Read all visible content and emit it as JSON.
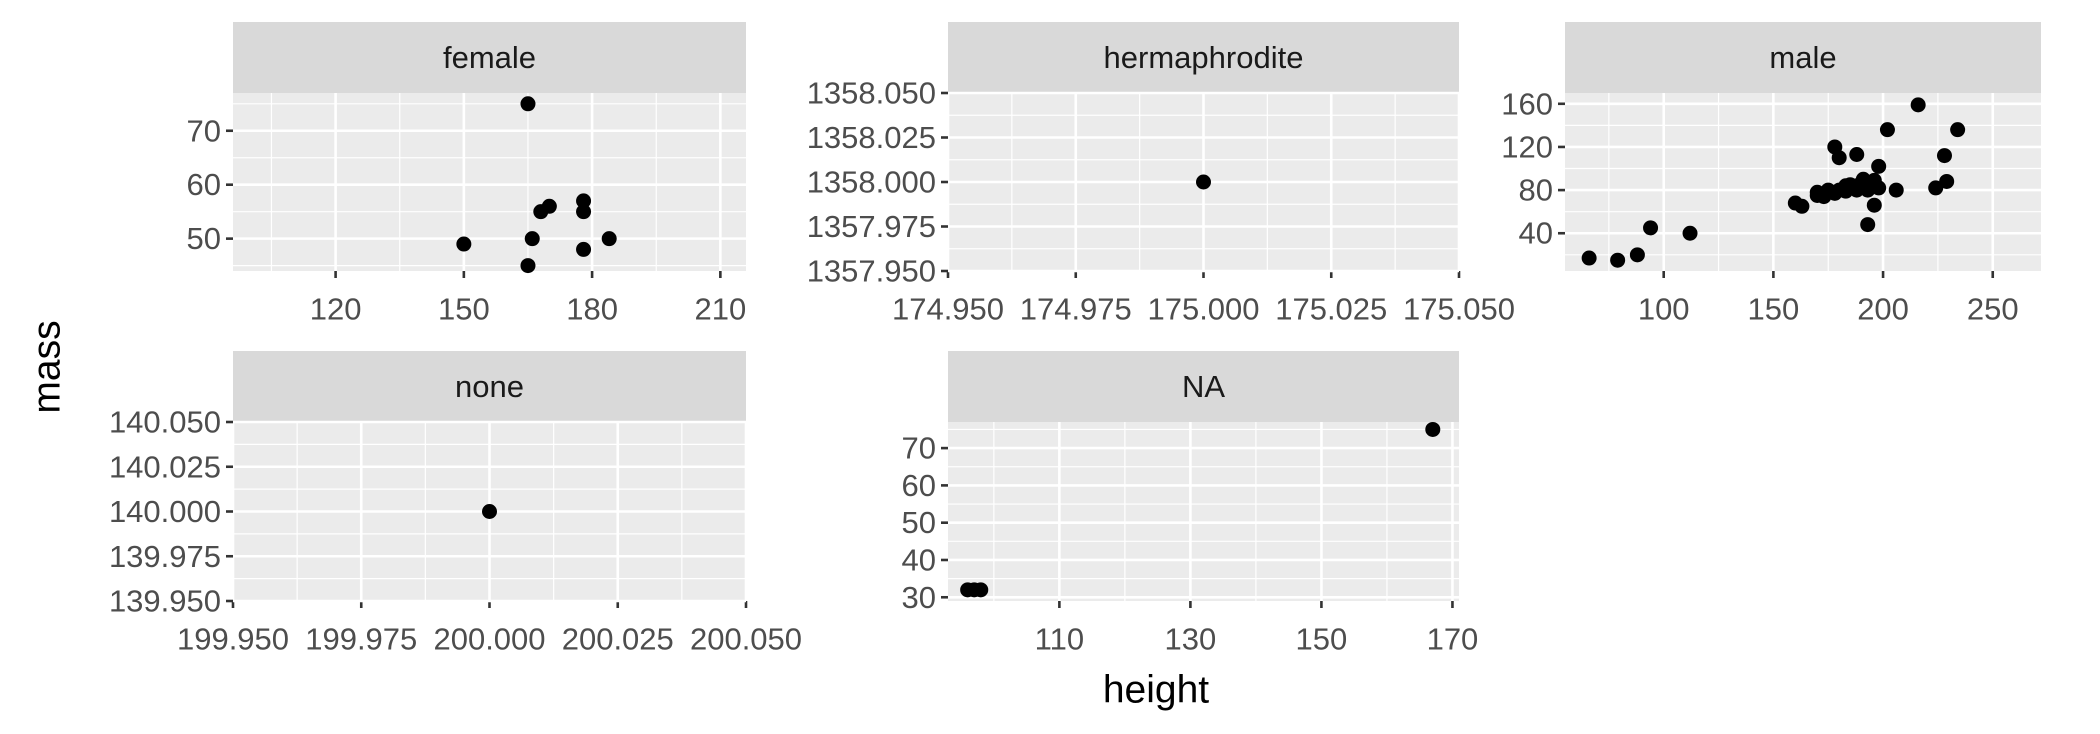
{
  "chart_data": {
    "type": "scatter",
    "xlabel": "height",
    "ylabel": "mass",
    "facet_scales": "free",
    "grid": true,
    "panels": [
      {
        "strip": "female",
        "xlim": [
          96,
          216
        ],
        "ylim": [
          44,
          77
        ],
        "xticks": [
          {
            "v": 120,
            "label": "120"
          },
          {
            "v": 150,
            "label": "150"
          },
          {
            "v": 180,
            "label": "180"
          },
          {
            "v": 210,
            "label": "210"
          }
        ],
        "yticks": [
          {
            "v": 50,
            "label": "50"
          },
          {
            "v": 60,
            "label": "60"
          },
          {
            "v": 70,
            "label": "70"
          }
        ],
        "points": [
          [
            165,
            75
          ],
          [
            150,
            49
          ],
          [
            165,
            45
          ],
          [
            166,
            50
          ],
          [
            168,
            55
          ],
          [
            170,
            56
          ],
          [
            178,
            57
          ],
          [
            178,
            55
          ],
          [
            178,
            48
          ],
          [
            184,
            50
          ]
        ]
      },
      {
        "strip": "hermaphrodite",
        "xlim": [
          174.95,
          175.05
        ],
        "ylim": [
          1357.95,
          1358.05
        ],
        "xticks": [
          {
            "v": 174.95,
            "label": "174.950"
          },
          {
            "v": 174.975,
            "label": "174.975"
          },
          {
            "v": 175.0,
            "label": "175.000"
          },
          {
            "v": 175.025,
            "label": "175.025"
          },
          {
            "v": 175.05,
            "label": "175.050"
          }
        ],
        "yticks": [
          {
            "v": 1357.95,
            "label": "1357.950"
          },
          {
            "v": 1357.975,
            "label": "1357.975"
          },
          {
            "v": 1358.0,
            "label": "1358.000"
          },
          {
            "v": 1358.025,
            "label": "1358.025"
          },
          {
            "v": 1358.05,
            "label": "1358.050"
          }
        ],
        "points": [
          [
            175,
            1358
          ]
        ]
      },
      {
        "strip": "male",
        "xlim": [
          55,
          272
        ],
        "ylim": [
          5,
          170
        ],
        "xticks": [
          {
            "v": 100,
            "label": "100"
          },
          {
            "v": 150,
            "label": "150"
          },
          {
            "v": 200,
            "label": "200"
          },
          {
            "v": 250,
            "label": "250"
          }
        ],
        "yticks": [
          {
            "v": 40,
            "label": "40"
          },
          {
            "v": 80,
            "label": "80"
          },
          {
            "v": 120,
            "label": "120"
          },
          {
            "v": 160,
            "label": "160"
          }
        ],
        "points": [
          [
            66,
            17
          ],
          [
            79,
            15
          ],
          [
            88,
            20
          ],
          [
            94,
            45
          ],
          [
            112,
            40
          ],
          [
            160,
            68
          ],
          [
            163,
            65
          ],
          [
            170,
            75
          ],
          [
            170,
            78
          ],
          [
            173,
            74
          ],
          [
            175,
            80
          ],
          [
            178,
            77
          ],
          [
            178,
            120
          ],
          [
            180,
            110
          ],
          [
            180,
            80
          ],
          [
            183,
            79
          ],
          [
            183,
            84
          ],
          [
            185,
            85
          ],
          [
            188,
            80
          ],
          [
            188,
            84
          ],
          [
            188,
            113
          ],
          [
            190,
            83
          ],
          [
            191,
            90
          ],
          [
            193,
            48
          ],
          [
            193,
            80
          ],
          [
            193,
            85
          ],
          [
            196,
            66
          ],
          [
            196,
            89
          ],
          [
            198,
            82
          ],
          [
            198,
            102
          ],
          [
            202,
            136
          ],
          [
            206,
            80
          ],
          [
            216,
            159
          ],
          [
            224,
            82
          ],
          [
            228,
            112
          ],
          [
            229,
            88
          ],
          [
            234,
            136
          ]
        ]
      },
      {
        "strip": "none",
        "xlim": [
          199.95,
          200.05
        ],
        "ylim": [
          139.95,
          140.05
        ],
        "xticks": [
          {
            "v": 199.95,
            "label": "199.950"
          },
          {
            "v": 199.975,
            "label": "199.975"
          },
          {
            "v": 200.0,
            "label": "200.000"
          },
          {
            "v": 200.025,
            "label": "200.025"
          },
          {
            "v": 200.05,
            "label": "200.050"
          }
        ],
        "yticks": [
          {
            "v": 139.95,
            "label": "139.950"
          },
          {
            "v": 139.975,
            "label": "139.975"
          },
          {
            "v": 140.0,
            "label": "140.000"
          },
          {
            "v": 140.025,
            "label": "140.025"
          },
          {
            "v": 140.05,
            "label": "140.050"
          }
        ],
        "points": [
          [
            200,
            140
          ]
        ]
      },
      {
        "strip": "NA",
        "xlim": [
          93,
          171
        ],
        "ylim": [
          29,
          77
        ],
        "xticks": [
          {
            "v": 110,
            "label": "110"
          },
          {
            "v": 130,
            "label": "130"
          },
          {
            "v": 150,
            "label": "150"
          },
          {
            "v": 170,
            "label": "170"
          }
        ],
        "yticks": [
          {
            "v": 30,
            "label": "30"
          },
          {
            "v": 40,
            "label": "40"
          },
          {
            "v": 50,
            "label": "50"
          },
          {
            "v": 60,
            "label": "60"
          },
          {
            "v": 70,
            "label": "70"
          }
        ],
        "points": [
          [
            96,
            32
          ],
          [
            97,
            32
          ],
          [
            98,
            32
          ],
          [
            167,
            75
          ]
        ]
      }
    ]
  }
}
